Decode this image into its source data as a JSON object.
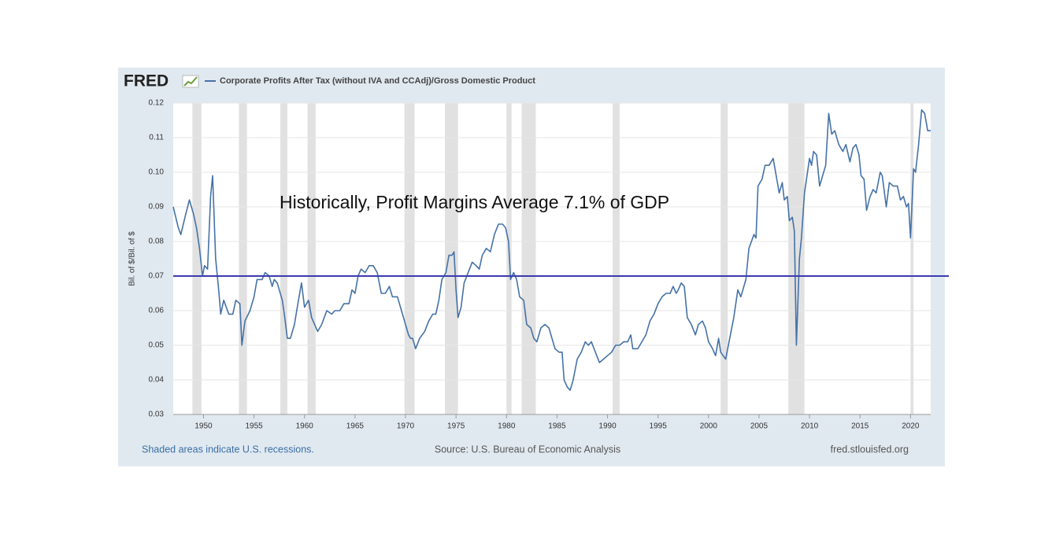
{
  "chart_data": {
    "type": "line",
    "logo": "FRED",
    "title": "Corporate Profits After Tax (without IVA and CCAdj)/Gross Domestic Product",
    "ylabel": "Bil. of $/Bil. of $",
    "annotation": "Historically, Profit Margins Average 7.1% of GDP",
    "footer_left": "Shaded areas indicate U.S. recessions.",
    "footer_center": "Source: U.S. Bureau of Economic Analysis",
    "footer_right": "fred.stlouisfed.org",
    "xlim": [
      1947,
      2022
    ],
    "ylim": [
      0.03,
      0.12
    ],
    "xticks": [
      1950,
      1955,
      1960,
      1965,
      1970,
      1975,
      1980,
      1985,
      1990,
      1995,
      2000,
      2005,
      2010,
      2015,
      2020
    ],
    "yticks": [
      0.03,
      0.04,
      0.05,
      0.06,
      0.07,
      0.08,
      0.09,
      {
        "value": 0.1,
        "label": "0.10"
      },
      0.11,
      0.12
    ],
    "grid": true,
    "reference_line": {
      "value": 0.07,
      "color": "#3b3bb0"
    },
    "recession_color": "#e1e1e1",
    "recessions": [
      [
        1948.9,
        1949.8
      ],
      [
        1953.5,
        1954.3
      ],
      [
        1957.6,
        1958.3
      ],
      [
        1960.3,
        1961.1
      ],
      [
        1969.9,
        1970.9
      ],
      [
        1973.9,
        1975.2
      ],
      [
        1980.0,
        1980.5
      ],
      [
        1981.5,
        1982.9
      ],
      [
        1990.5,
        1991.2
      ],
      [
        2001.2,
        2001.9
      ],
      [
        2007.9,
        2009.5
      ],
      [
        2020.0,
        2020.3
      ]
    ],
    "x": [
      1947.0,
      1947.5,
      1947.75,
      1948.25,
      1948.6,
      1949.0,
      1949.3,
      1949.6,
      1949.9,
      1950.1,
      1950.4,
      1950.7,
      1950.9,
      1951.2,
      1951.5,
      1951.7,
      1952.0,
      1952.5,
      1952.9,
      1953.2,
      1953.6,
      1953.8,
      1954.1,
      1954.6,
      1955.0,
      1955.3,
      1955.8,
      1956.1,
      1956.5,
      1956.8,
      1957.0,
      1957.3,
      1957.8,
      1958.0,
      1958.3,
      1958.6,
      1959.0,
      1959.4,
      1959.7,
      1960.0,
      1960.4,
      1960.7,
      1961.0,
      1961.3,
      1961.7,
      1962.2,
      1962.7,
      1963.0,
      1963.5,
      1963.9,
      1964.4,
      1964.7,
      1965.0,
      1965.3,
      1965.6,
      1966.0,
      1966.4,
      1966.8,
      1967.2,
      1967.6,
      1968.0,
      1968.4,
      1968.7,
      1969.2,
      1969.6,
      1970.0,
      1970.3,
      1970.5,
      1970.7,
      1971.0,
      1971.4,
      1971.9,
      1972.3,
      1972.7,
      1973.0,
      1973.3,
      1973.6,
      1974.0,
      1974.3,
      1974.6,
      1974.8,
      1975.0,
      1975.2,
      1975.5,
      1975.8,
      1976.2,
      1976.6,
      1977.0,
      1977.3,
      1977.6,
      1978.0,
      1978.4,
      1978.8,
      1979.2,
      1979.6,
      1979.9,
      1980.2,
      1980.4,
      1980.7,
      1981.0,
      1981.3,
      1981.7,
      1982.0,
      1982.4,
      1982.7,
      1983.0,
      1983.4,
      1983.8,
      1984.2,
      1984.5,
      1984.8,
      1985.2,
      1985.5,
      1985.7,
      1986.0,
      1986.3,
      1986.6,
      1987.0,
      1987.4,
      1987.8,
      1988.1,
      1988.4,
      1988.8,
      1989.2,
      1989.6,
      1990.0,
      1990.4,
      1990.8,
      1991.2,
      1991.6,
      1992.0,
      1992.3,
      1992.5,
      1993.0,
      1993.4,
      1993.8,
      1994.2,
      1994.6,
      1995.0,
      1995.4,
      1995.8,
      1996.2,
      1996.5,
      1996.8,
      1997.0,
      1997.3,
      1997.6,
      1997.9,
      1998.3,
      1998.7,
      1999.0,
      1999.4,
      1999.7,
      2000.0,
      2000.4,
      2000.7,
      2001.0,
      2001.2,
      2001.7,
      2002.1,
      2002.5,
      2002.9,
      2003.2,
      2003.7,
      2004.0,
      2004.5,
      2004.7,
      2004.9,
      2005.3,
      2005.6,
      2006.0,
      2006.4,
      2006.7,
      2007.0,
      2007.3,
      2007.5,
      2007.8,
      2008.0,
      2008.3,
      2008.5,
      2008.7,
      2009.0,
      2009.2,
      2009.5,
      2009.8,
      2010.0,
      2010.2,
      2010.4,
      2010.7,
      2011.0,
      2011.3,
      2011.6,
      2011.9,
      2012.2,
      2012.5,
      2012.9,
      2013.3,
      2013.6,
      2014.0,
      2014.3,
      2014.6,
      2014.9,
      2015.1,
      2015.4,
      2015.65,
      2016.0,
      2016.3,
      2016.6,
      2017.0,
      2017.2,
      2017.6,
      2017.9,
      2018.3,
      2018.7,
      2019.0,
      2019.3,
      2019.6,
      2019.8,
      2020.0,
      2020.3,
      2020.5,
      2020.8,
      2021.1,
      2021.4,
      2021.7,
      2022.0
    ],
    "series": [
      {
        "name": "Corporate Profits After Tax (without IVA and CCAdj)/Gross Domestic Product",
        "color": "#4572a7",
        "values": [
          0.09,
          0.084,
          0.082,
          0.088,
          0.092,
          0.088,
          0.084,
          0.078,
          0.07,
          0.073,
          0.072,
          0.093,
          0.099,
          0.075,
          0.066,
          0.059,
          0.063,
          0.059,
          0.059,
          0.063,
          0.062,
          0.05,
          0.057,
          0.06,
          0.064,
          0.069,
          0.069,
          0.071,
          0.07,
          0.067,
          0.069,
          0.068,
          0.063,
          0.059,
          0.052,
          0.052,
          0.056,
          0.063,
          0.068,
          0.061,
          0.063,
          0.058,
          0.056,
          0.054,
          0.056,
          0.06,
          0.059,
          0.06,
          0.06,
          0.062,
          0.062,
          0.066,
          0.065,
          0.07,
          0.072,
          0.071,
          0.073,
          0.073,
          0.071,
          0.065,
          0.065,
          0.067,
          0.064,
          0.064,
          0.06,
          0.056,
          0.053,
          0.052,
          0.052,
          0.049,
          0.052,
          0.054,
          0.057,
          0.059,
          0.059,
          0.063,
          0.069,
          0.071,
          0.076,
          0.076,
          0.077,
          0.066,
          0.058,
          0.061,
          0.068,
          0.071,
          0.074,
          0.073,
          0.072,
          0.076,
          0.078,
          0.077,
          0.082,
          0.085,
          0.085,
          0.084,
          0.08,
          0.069,
          0.071,
          0.069,
          0.064,
          0.063,
          0.056,
          0.055,
          0.052,
          0.051,
          0.055,
          0.056,
          0.055,
          0.052,
          0.049,
          0.048,
          0.048,
          0.04,
          0.038,
          0.037,
          0.04,
          0.046,
          0.048,
          0.051,
          0.05,
          0.051,
          0.048,
          0.045,
          0.046,
          0.047,
          0.048,
          0.05,
          0.05,
          0.051,
          0.051,
          0.053,
          0.049,
          0.049,
          0.051,
          0.053,
          0.057,
          0.059,
          0.062,
          0.064,
          0.065,
          0.065,
          0.067,
          0.065,
          0.066,
          0.068,
          0.067,
          0.058,
          0.056,
          0.053,
          0.056,
          0.057,
          0.055,
          0.051,
          0.049,
          0.047,
          0.052,
          0.048,
          0.046,
          0.052,
          0.058,
          0.066,
          0.064,
          0.069,
          0.078,
          0.082,
          0.081,
          0.096,
          0.098,
          0.102,
          0.102,
          0.104,
          0.099,
          0.094,
          0.097,
          0.092,
          0.093,
          0.086,
          0.087,
          0.083,
          0.05,
          0.075,
          0.081,
          0.094,
          0.1,
          0.104,
          0.102,
          0.106,
          0.105,
          0.096,
          0.099,
          0.102,
          0.117,
          0.111,
          0.112,
          0.108,
          0.106,
          0.108,
          0.103,
          0.107,
          0.108,
          0.105,
          0.099,
          0.098,
          0.089,
          0.093,
          0.095,
          0.094,
          0.1,
          0.099,
          0.09,
          0.097,
          0.096,
          0.096,
          0.092,
          0.093,
          0.09,
          0.091,
          0.081,
          0.101,
          0.1,
          0.108,
          0.118,
          0.117,
          0.112,
          0.112
        ]
      }
    ]
  }
}
